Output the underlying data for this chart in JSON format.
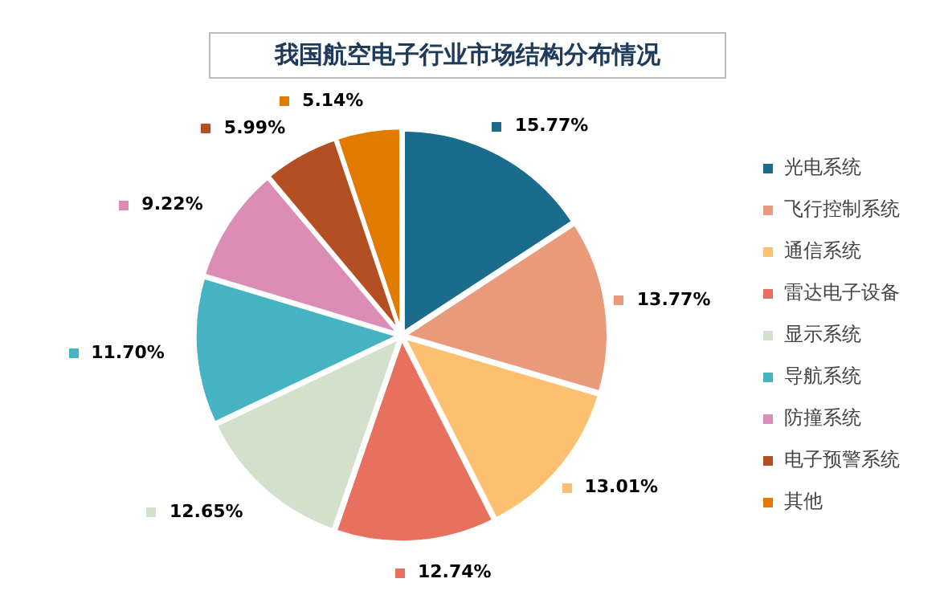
{
  "chart_data": {
    "type": "pie",
    "title": "我国航空电子行业市场结构分布情况",
    "categories": [
      "光电系统",
      "飞行控制系统",
      "通信系统",
      "雷达电子设备",
      "显示系统",
      "导航系统",
      "防撞系统",
      "电子预警系统",
      "其他"
    ],
    "values": [
      15.77,
      13.77,
      13.01,
      12.74,
      12.65,
      11.7,
      9.22,
      5.99,
      5.14
    ],
    "value_labels": [
      "15.77%",
      "13.77%",
      "13.01%",
      "12.74%",
      "12.65%",
      "11.70%",
      "9.22%",
      "5.99%",
      "5.14%"
    ],
    "colors": [
      "#1b6b8c",
      "#e89a7a",
      "#fdc070",
      "#e8705f",
      "#d2e0cc",
      "#45b3c1",
      "#dc8db6",
      "#b34f22",
      "#e07b00"
    ],
    "legend": "right"
  }
}
